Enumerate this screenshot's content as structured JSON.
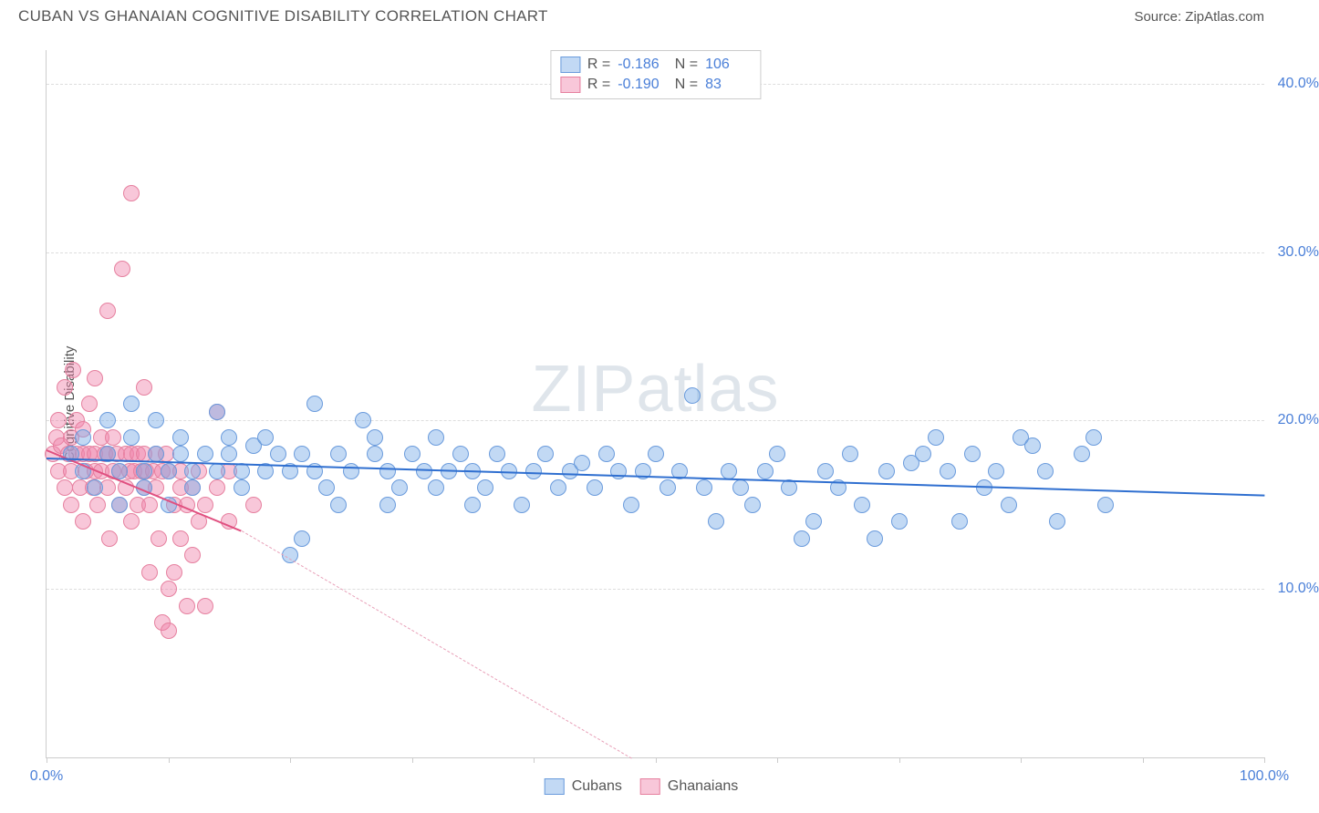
{
  "header": {
    "title": "CUBAN VS GHANAIAN COGNITIVE DISABILITY CORRELATION CHART",
    "source": "Source: ZipAtlas.com"
  },
  "chart": {
    "type": "scatter",
    "watermark": "ZIPatlas",
    "y_axis_label": "Cognitive Disability",
    "xlim": [
      0,
      100
    ],
    "ylim": [
      0,
      42
    ],
    "x_ticks": [
      0,
      10,
      20,
      30,
      40,
      50,
      60,
      70,
      80,
      90,
      100
    ],
    "x_tick_labels": {
      "0": "0.0%",
      "100": "100.0%"
    },
    "y_ticks": [
      10,
      20,
      30,
      40
    ],
    "y_tick_labels": {
      "10": "10.0%",
      "20": "20.0%",
      "30": "30.0%",
      "40": "40.0%"
    },
    "grid_color": "#dddddd",
    "axis_color": "#cccccc",
    "background_color": "#ffffff",
    "tick_label_color": "#4a7fd8",
    "axis_label_color": "#555555",
    "series": {
      "cubans": {
        "label": "Cubans",
        "R": "-0.186",
        "N": "106",
        "color_fill": "rgba(120,170,230,0.45)",
        "color_stroke": "#6a9bdc",
        "marker_radius": 9,
        "trend": {
          "x1": 0,
          "y1": 17.8,
          "x2": 100,
          "y2": 15.6,
          "color": "#2f6fd0",
          "width": 2.5,
          "dash": "solid"
        },
        "points": [
          [
            2,
            18
          ],
          [
            3,
            17
          ],
          [
            3,
            19
          ],
          [
            4,
            16
          ],
          [
            5,
            18
          ],
          [
            5,
            20
          ],
          [
            6,
            17
          ],
          [
            6,
            15
          ],
          [
            7,
            19
          ],
          [
            7,
            21
          ],
          [
            8,
            17
          ],
          [
            8,
            16
          ],
          [
            9,
            18
          ],
          [
            9,
            20
          ],
          [
            10,
            17
          ],
          [
            10,
            15
          ],
          [
            11,
            19
          ],
          [
            11,
            18
          ],
          [
            12,
            17
          ],
          [
            12,
            16
          ],
          [
            13,
            18
          ],
          [
            14,
            20.5
          ],
          [
            14,
            17
          ],
          [
            15,
            18
          ],
          [
            15,
            19
          ],
          [
            16,
            17
          ],
          [
            16,
            16
          ],
          [
            17,
            18.5
          ],
          [
            18,
            19
          ],
          [
            18,
            17
          ],
          [
            19,
            18
          ],
          [
            20,
            17
          ],
          [
            20,
            12
          ],
          [
            21,
            18
          ],
          [
            21,
            13
          ],
          [
            22,
            17
          ],
          [
            22,
            21
          ],
          [
            23,
            16
          ],
          [
            24,
            18
          ],
          [
            24,
            15
          ],
          [
            25,
            17
          ],
          [
            26,
            20
          ],
          [
            27,
            18
          ],
          [
            27,
            19
          ],
          [
            28,
            17
          ],
          [
            28,
            15
          ],
          [
            29,
            16
          ],
          [
            30,
            18
          ],
          [
            31,
            17
          ],
          [
            32,
            16
          ],
          [
            32,
            19
          ],
          [
            33,
            17
          ],
          [
            34,
            18
          ],
          [
            35,
            15
          ],
          [
            35,
            17
          ],
          [
            36,
            16
          ],
          [
            37,
            18
          ],
          [
            38,
            17
          ],
          [
            39,
            15
          ],
          [
            40,
            17
          ],
          [
            41,
            18
          ],
          [
            42,
            16
          ],
          [
            43,
            17
          ],
          [
            44,
            17.5
          ],
          [
            45,
            16
          ],
          [
            46,
            18
          ],
          [
            47,
            17
          ],
          [
            48,
            15
          ],
          [
            49,
            17
          ],
          [
            50,
            18
          ],
          [
            51,
            16
          ],
          [
            52,
            17
          ],
          [
            53,
            21.5
          ],
          [
            54,
            16
          ],
          [
            55,
            14
          ],
          [
            56,
            17
          ],
          [
            57,
            16
          ],
          [
            58,
            15
          ],
          [
            59,
            17
          ],
          [
            60,
            18
          ],
          [
            61,
            16
          ],
          [
            62,
            13
          ],
          [
            63,
            14
          ],
          [
            64,
            17
          ],
          [
            65,
            16
          ],
          [
            66,
            18
          ],
          [
            67,
            15
          ],
          [
            68,
            13
          ],
          [
            69,
            17
          ],
          [
            70,
            14
          ],
          [
            71,
            17.5
          ],
          [
            72,
            18
          ],
          [
            73,
            19
          ],
          [
            74,
            17
          ],
          [
            75,
            14
          ],
          [
            76,
            18
          ],
          [
            77,
            16
          ],
          [
            78,
            17
          ],
          [
            79,
            15
          ],
          [
            80,
            19
          ],
          [
            81,
            18.5
          ],
          [
            82,
            17
          ],
          [
            83,
            14
          ],
          [
            85,
            18
          ],
          [
            86,
            19
          ],
          [
            87,
            15
          ]
        ]
      },
      "ghanaians": {
        "label": "Ghanaians",
        "R": "-0.190",
        "N": "83",
        "color_fill": "rgba(240,130,170,0.45)",
        "color_stroke": "#e6809f",
        "marker_radius": 9,
        "trend_solid": {
          "x1": 0,
          "y1": 18.3,
          "x2": 16,
          "y2": 13.5,
          "color": "#e05080",
          "width": 2,
          "dash": "solid"
        },
        "trend_dash": {
          "x1": 16,
          "y1": 13.5,
          "x2": 48,
          "y2": 0,
          "color": "#e8a0b8",
          "width": 1.2,
          "dash": "dashed"
        },
        "points": [
          [
            0.5,
            18
          ],
          [
            0.8,
            19
          ],
          [
            1,
            17
          ],
          [
            1,
            20
          ],
          [
            1.2,
            18.5
          ],
          [
            1.5,
            16
          ],
          [
            1.5,
            22
          ],
          [
            1.8,
            18
          ],
          [
            2,
            19
          ],
          [
            2,
            15
          ],
          [
            2,
            17
          ],
          [
            2.2,
            23
          ],
          [
            2.5,
            18
          ],
          [
            2.5,
            20
          ],
          [
            2.8,
            16
          ],
          [
            3,
            18
          ],
          [
            3,
            19.5
          ],
          [
            3,
            14
          ],
          [
            3.2,
            17
          ],
          [
            3.5,
            21
          ],
          [
            3.5,
            18
          ],
          [
            3.8,
            16
          ],
          [
            4,
            18
          ],
          [
            4,
            17
          ],
          [
            4,
            22.5
          ],
          [
            4.2,
            15
          ],
          [
            4.5,
            19
          ],
          [
            4.5,
            17
          ],
          [
            4.8,
            18
          ],
          [
            5,
            16
          ],
          [
            5,
            26.5
          ],
          [
            5,
            18
          ],
          [
            5.2,
            13
          ],
          [
            5.5,
            17
          ],
          [
            5.5,
            19
          ],
          [
            5.8,
            18
          ],
          [
            6,
            15
          ],
          [
            6,
            17
          ],
          [
            6.2,
            29
          ],
          [
            6.5,
            18
          ],
          [
            6.5,
            16
          ],
          [
            6.8,
            17
          ],
          [
            7,
            18
          ],
          [
            7,
            14
          ],
          [
            7,
            33.5
          ],
          [
            7.2,
            17
          ],
          [
            7.5,
            15
          ],
          [
            7.5,
            18
          ],
          [
            7.8,
            17
          ],
          [
            8,
            16
          ],
          [
            8,
            18
          ],
          [
            8,
            22
          ],
          [
            8.2,
            17
          ],
          [
            8.5,
            15
          ],
          [
            8.5,
            11
          ],
          [
            8.8,
            17
          ],
          [
            9,
            18
          ],
          [
            9,
            16
          ],
          [
            9.2,
            13
          ],
          [
            9.5,
            17
          ],
          [
            9.5,
            8
          ],
          [
            9.8,
            18
          ],
          [
            10,
            10
          ],
          [
            10,
            17
          ],
          [
            10,
            7.5
          ],
          [
            10.5,
            15
          ],
          [
            10.5,
            11
          ],
          [
            11,
            16
          ],
          [
            11,
            17
          ],
          [
            11,
            13
          ],
          [
            11.5,
            15
          ],
          [
            11.5,
            9
          ],
          [
            12,
            16
          ],
          [
            12,
            12
          ],
          [
            12.5,
            14
          ],
          [
            12.5,
            17
          ],
          [
            13,
            15
          ],
          [
            13,
            9
          ],
          [
            14,
            20.5
          ],
          [
            14,
            16
          ],
          [
            15,
            14
          ],
          [
            15,
            17
          ],
          [
            17,
            15
          ]
        ]
      }
    }
  },
  "legend_bottom": [
    {
      "key": "cubans",
      "label": "Cubans"
    },
    {
      "key": "ghanaians",
      "label": "Ghanaians"
    }
  ]
}
